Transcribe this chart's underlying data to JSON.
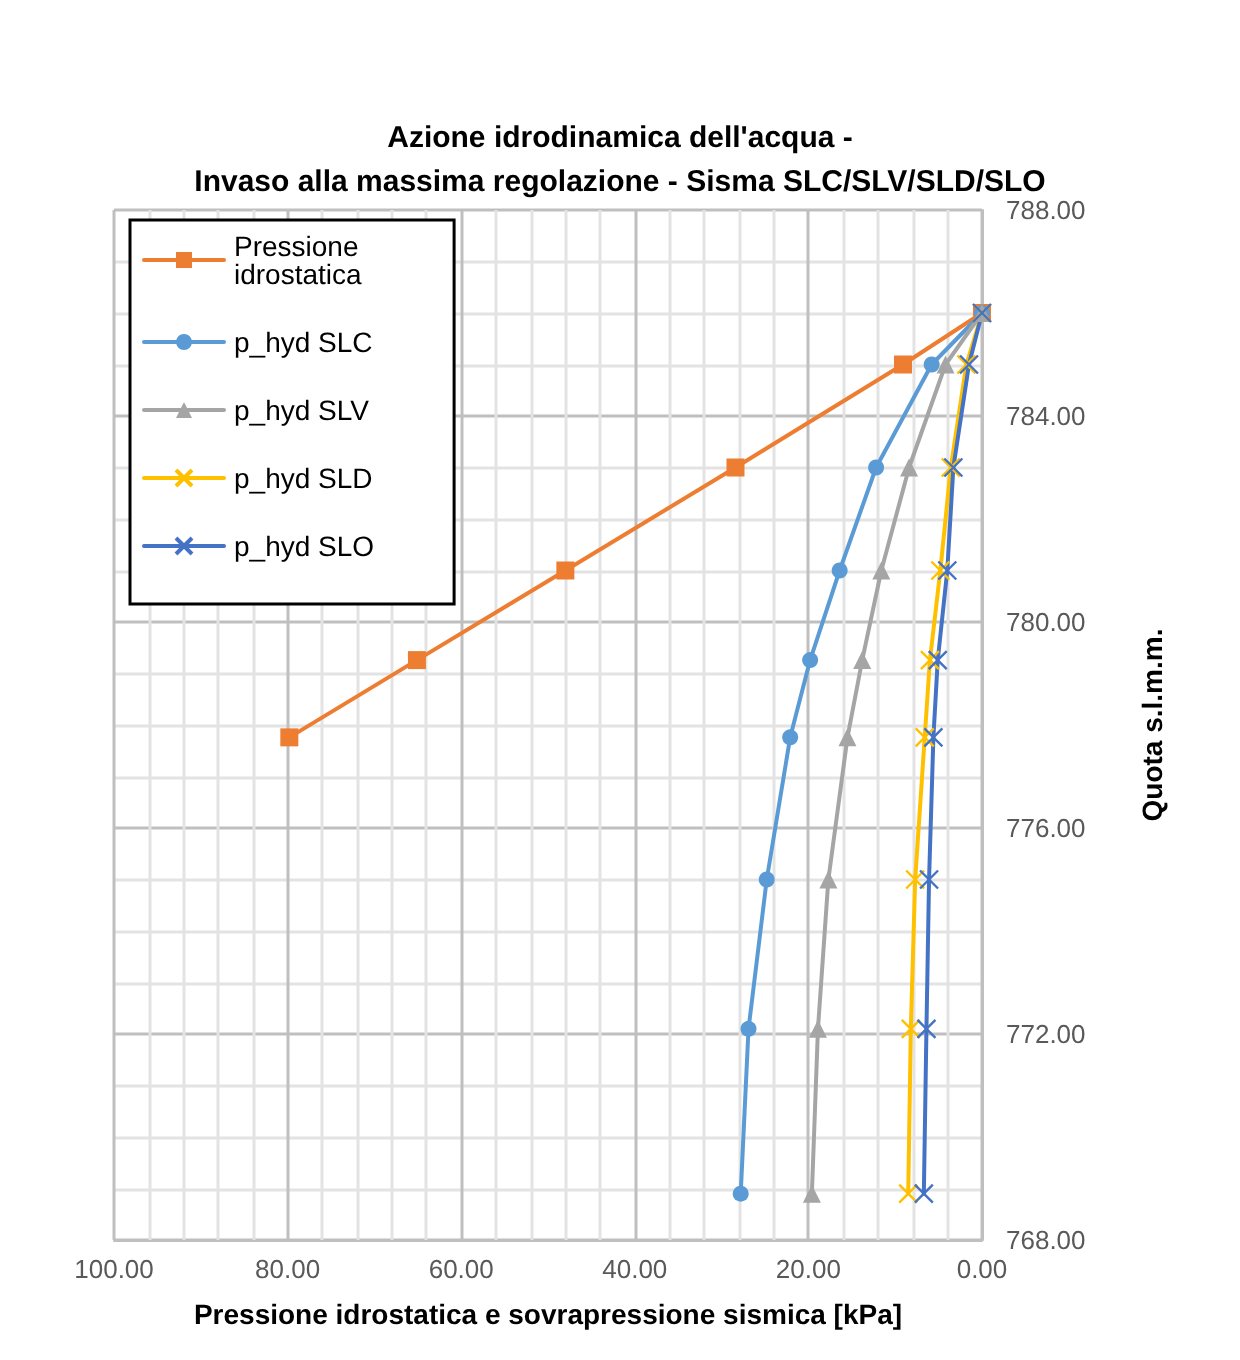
{
  "chart_data": {
    "type": "line",
    "title": "Azione idrodinamica dell'acqua -\nInvaso alla massima regolazione - Sisma SLC/SLV/SLD/SLO",
    "xlabel": "Pressione idrostatica e sovrapressione sismica [kPa]",
    "ylabel": "Quota s.l.m.m.",
    "xlim": [
      100,
      0
    ],
    "xticks": [
      {
        "value": 100,
        "label": "100.00"
      },
      {
        "value": 80,
        "label": "80.00"
      },
      {
        "value": 60,
        "label": "60.00"
      },
      {
        "value": 40,
        "label": "40.00"
      },
      {
        "value": 20,
        "label": "20.00"
      },
      {
        "value": 0,
        "label": "0.00"
      }
    ],
    "ylim": [
      768,
      788
    ],
    "yticks": [
      {
        "value": 768,
        "label": "768.00"
      },
      {
        "value": 772,
        "label": "772.00"
      },
      {
        "value": 776,
        "label": "776.00"
      },
      {
        "value": 780,
        "label": "780.00"
      },
      {
        "value": 784,
        "label": "784.00"
      },
      {
        "value": 788,
        "label": "788.00"
      }
    ],
    "grid": true,
    "legend": "top left",
    "line_style": "solid",
    "series": [
      {
        "name": "Pressione idrostatica",
        "color": "#ed7d31",
        "marker": "square",
        "x": [
          0,
          9.1,
          28.4,
          48,
          65.1,
          79.8
        ],
        "values": [
          786,
          785,
          783,
          781,
          779.26,
          777.76
        ]
      },
      {
        "name": "p_hyd SLC",
        "color": "#5b9bd5",
        "marker": "circle",
        "x": [
          0,
          5.8,
          12.2,
          16.4,
          19.8,
          22.1,
          24.8,
          26.9,
          27.8
        ],
        "values": [
          786,
          785,
          783,
          781,
          779.26,
          777.76,
          775,
          772.1,
          768.9
        ]
      },
      {
        "name": "p_hyd SLV",
        "color": "#a5a5a5",
        "marker": "triangle",
        "x": [
          0,
          4.2,
          8.4,
          11.6,
          13.8,
          15.5,
          17.7,
          18.9,
          19.6
        ],
        "values": [
          786,
          785,
          783,
          781,
          779.26,
          777.76,
          775,
          772.1,
          768.9
        ]
      },
      {
        "name": "p_hyd SLD",
        "color": "#ffc000",
        "marker": "cross",
        "x": [
          0,
          1.8,
          3.6,
          4.8,
          6.0,
          6.6,
          7.7,
          8.2,
          8.5
        ],
        "values": [
          786,
          785,
          783,
          781,
          779.26,
          777.76,
          775,
          772.1,
          768.9
        ]
      },
      {
        "name": "p_hyd SLO",
        "color": "#4472c4",
        "marker": "cross",
        "x": [
          0,
          1.5,
          3.3,
          4.0,
          5.1,
          5.6,
          6.1,
          6.4,
          6.7
        ],
        "values": [
          786,
          785,
          783,
          781,
          779.26,
          777.76,
          775,
          772.1,
          768.9
        ]
      }
    ]
  }
}
